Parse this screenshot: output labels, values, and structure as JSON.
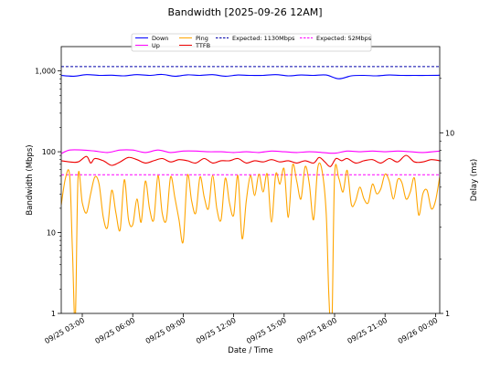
{
  "chart_data": {
    "type": "line",
    "title": "Bandwidth [2025-09-26 12AM]",
    "xlabel": "Date / Time",
    "ylabel_left": "Bandwidth (Mbps)",
    "ylabel_right": "Delay (ms)",
    "yscale_left": "log",
    "yscale_right": "log",
    "ylim_left": [
      1,
      2000
    ],
    "ylim_right": [
      1,
      30
    ],
    "y_ticks_left": [
      {
        "value": 1,
        "label": "1"
      },
      {
        "value": 10,
        "label": "10"
      },
      {
        "value": 100,
        "label": "100"
      },
      {
        "value": 1000,
        "label": "1,000"
      }
    ],
    "y_ticks_right": [
      {
        "value": 1,
        "label": "1"
      },
      {
        "value": 10,
        "label": "10"
      }
    ],
    "xlim": [
      "2025-09-25 01:45",
      "2025-09-26 00:15"
    ],
    "x_ticks": [
      {
        "t": "2025-09-25 03:00",
        "label": "09/25 03:00"
      },
      {
        "t": "2025-09-25 06:00",
        "label": "09/25 06:00"
      },
      {
        "t": "2025-09-25 09:00",
        "label": "09/25 09:00"
      },
      {
        "t": "2025-09-25 12:00",
        "label": "09/25 12:00"
      },
      {
        "t": "2025-09-25 15:00",
        "label": "09/25 15:00"
      },
      {
        "t": "2025-09-25 18:00",
        "label": "09/25 18:00"
      },
      {
        "t": "2025-09-25 21:00",
        "label": "09/25 21:00"
      },
      {
        "t": "2025-09-26 00:00",
        "label": "09/26 00:00"
      }
    ],
    "legend_position": "top-center",
    "grid": false,
    "series": [
      {
        "name": "Down",
        "axis": "left",
        "color": "#0000ff",
        "style": "solid",
        "values": [
          [
            "2025-09-25 01:45",
            880
          ],
          [
            "2025-09-25 02:30",
            860
          ],
          [
            "2025-09-25 03:15",
            900
          ],
          [
            "2025-09-25 04:00",
            880
          ],
          [
            "2025-09-25 04:45",
            885
          ],
          [
            "2025-09-25 05:30",
            870
          ],
          [
            "2025-09-25 06:15",
            900
          ],
          [
            "2025-09-25 07:00",
            880
          ],
          [
            "2025-09-25 07:45",
            905
          ],
          [
            "2025-09-25 08:30",
            860
          ],
          [
            "2025-09-25 09:15",
            895
          ],
          [
            "2025-09-25 10:00",
            880
          ],
          [
            "2025-09-25 10:45",
            900
          ],
          [
            "2025-09-25 11:30",
            860
          ],
          [
            "2025-09-25 12:15",
            890
          ],
          [
            "2025-09-25 13:00",
            880
          ],
          [
            "2025-09-25 13:45",
            880
          ],
          [
            "2025-09-25 14:30",
            900
          ],
          [
            "2025-09-25 15:15",
            870
          ],
          [
            "2025-09-25 16:00",
            890
          ],
          [
            "2025-09-25 16:45",
            880
          ],
          [
            "2025-09-25 17:30",
            890
          ],
          [
            "2025-09-25 18:15",
            800
          ],
          [
            "2025-09-25 19:00",
            870
          ],
          [
            "2025-09-25 19:45",
            880
          ],
          [
            "2025-09-25 20:30",
            870
          ],
          [
            "2025-09-25 21:15",
            890
          ],
          [
            "2025-09-25 22:00",
            880
          ],
          [
            "2025-09-25 22:45",
            880
          ],
          [
            "2025-09-25 23:30",
            880
          ],
          [
            "2025-09-26 00:15",
            885
          ]
        ]
      },
      {
        "name": "Up",
        "axis": "left",
        "color": "#ff00ff",
        "style": "solid",
        "values": [
          [
            "2025-09-25 01:45",
            95
          ],
          [
            "2025-09-25 02:15",
            105
          ],
          [
            "2025-09-25 03:00",
            105
          ],
          [
            "2025-09-25 03:45",
            102
          ],
          [
            "2025-09-25 04:30",
            98
          ],
          [
            "2025-09-25 05:15",
            105
          ],
          [
            "2025-09-25 06:00",
            105
          ],
          [
            "2025-09-25 06:45",
            98
          ],
          [
            "2025-09-25 07:30",
            105
          ],
          [
            "2025-09-25 08:15",
            98
          ],
          [
            "2025-09-25 09:00",
            102
          ],
          [
            "2025-09-25 09:45",
            102
          ],
          [
            "2025-09-25 10:30",
            100
          ],
          [
            "2025-09-25 11:15",
            100
          ],
          [
            "2025-09-25 12:00",
            98
          ],
          [
            "2025-09-25 12:45",
            100
          ],
          [
            "2025-09-25 13:30",
            98
          ],
          [
            "2025-09-25 14:15",
            102
          ],
          [
            "2025-09-25 15:00",
            100
          ],
          [
            "2025-09-25 15:45",
            98
          ],
          [
            "2025-09-25 16:30",
            100
          ],
          [
            "2025-09-25 17:15",
            98
          ],
          [
            "2025-09-25 18:00",
            96
          ],
          [
            "2025-09-25 18:45",
            102
          ],
          [
            "2025-09-25 19:30",
            100
          ],
          [
            "2025-09-25 20:15",
            102
          ],
          [
            "2025-09-25 21:00",
            100
          ],
          [
            "2025-09-25 21:45",
            102
          ],
          [
            "2025-09-25 22:30",
            100
          ],
          [
            "2025-09-25 23:15",
            98
          ],
          [
            "2025-09-26 00:15",
            102
          ]
        ]
      },
      {
        "name": "Ping",
        "axis": "right",
        "color": "#ffa500",
        "style": "solid",
        "values": [
          [
            "2025-09-25 01:45",
            4
          ],
          [
            "2025-09-25 02:00",
            5.6
          ],
          [
            "2025-09-25 02:15",
            5.8
          ],
          [
            "2025-09-25 02:25",
            2.2
          ],
          [
            "2025-09-25 02:35",
            0.9
          ],
          [
            "2025-09-25 02:45",
            5.7
          ],
          [
            "2025-09-25 03:00",
            4.1
          ],
          [
            "2025-09-25 03:15",
            3.6
          ],
          [
            "2025-09-25 03:30",
            4.6
          ],
          [
            "2025-09-25 03:45",
            5.7
          ],
          [
            "2025-09-25 04:00",
            5.2
          ],
          [
            "2025-09-25 04:15",
            3.4
          ],
          [
            "2025-09-25 04:30",
            3.0
          ],
          [
            "2025-09-25 04:45",
            4.8
          ],
          [
            "2025-09-25 05:00",
            3.6
          ],
          [
            "2025-09-25 05:15",
            2.9
          ],
          [
            "2025-09-25 05:30",
            5.5
          ],
          [
            "2025-09-25 05:45",
            3.3
          ],
          [
            "2025-09-25 06:00",
            3.1
          ],
          [
            "2025-09-25 06:15",
            4.3
          ],
          [
            "2025-09-25 06:30",
            3.2
          ],
          [
            "2025-09-25 06:45",
            5.4
          ],
          [
            "2025-09-25 07:00",
            3.8
          ],
          [
            "2025-09-25 07:15",
            3.3
          ],
          [
            "2025-09-25 07:30",
            5.8
          ],
          [
            "2025-09-25 07:45",
            3.6
          ],
          [
            "2025-09-25 08:00",
            3.3
          ],
          [
            "2025-09-25 08:15",
            5.7
          ],
          [
            "2025-09-25 08:30",
            4.4
          ],
          [
            "2025-09-25 08:45",
            3.3
          ],
          [
            "2025-09-25 09:00",
            2.5
          ],
          [
            "2025-09-25 09:15",
            5.8
          ],
          [
            "2025-09-25 09:30",
            4.2
          ],
          [
            "2025-09-25 09:45",
            3.6
          ],
          [
            "2025-09-25 10:00",
            5.7
          ],
          [
            "2025-09-25 10:15",
            4.4
          ],
          [
            "2025-09-25 10:30",
            3.8
          ],
          [
            "2025-09-25 10:45",
            5.8
          ],
          [
            "2025-09-25 11:00",
            3.8
          ],
          [
            "2025-09-25 11:15",
            3.3
          ],
          [
            "2025-09-25 11:30",
            5.6
          ],
          [
            "2025-09-25 11:45",
            4.1
          ],
          [
            "2025-09-25 12:00",
            3.5
          ],
          [
            "2025-09-25 12:15",
            5.8
          ],
          [
            "2025-09-25 12:30",
            2.6
          ],
          [
            "2025-09-25 12:45",
            4.2
          ],
          [
            "2025-09-25 13:00",
            5.8
          ],
          [
            "2025-09-25 13:15",
            4.5
          ],
          [
            "2025-09-25 13:30",
            5.9
          ],
          [
            "2025-09-25 13:45",
            4.7
          ],
          [
            "2025-09-25 14:00",
            5.9
          ],
          [
            "2025-09-25 14:15",
            3.2
          ],
          [
            "2025-09-25 14:30",
            5.9
          ],
          [
            "2025-09-25 14:45",
            5.2
          ],
          [
            "2025-09-25 15:00",
            6.3
          ],
          [
            "2025-09-25 15:15",
            3.4
          ],
          [
            "2025-09-25 15:30",
            6.6
          ],
          [
            "2025-09-25 15:45",
            5.4
          ],
          [
            "2025-09-25 16:00",
            4.3
          ],
          [
            "2025-09-25 16:15",
            6.5
          ],
          [
            "2025-09-25 16:30",
            5.2
          ],
          [
            "2025-09-25 16:45",
            3.3
          ],
          [
            "2025-09-25 17:00",
            6.4
          ],
          [
            "2025-09-25 17:15",
            6.2
          ],
          [
            "2025-09-25 17:30",
            3.6
          ],
          [
            "2025-09-25 17:40",
            1.2
          ],
          [
            "2025-09-25 17:50",
            0.8
          ],
          [
            "2025-09-25 18:00",
            5.8
          ],
          [
            "2025-09-25 18:15",
            5.6
          ],
          [
            "2025-09-25 18:30",
            4.7
          ],
          [
            "2025-09-25 18:45",
            6.2
          ],
          [
            "2025-09-25 19:00",
            4.0
          ],
          [
            "2025-09-25 19:15",
            4.2
          ],
          [
            "2025-09-25 19:30",
            5.0
          ],
          [
            "2025-09-25 19:45",
            4.3
          ],
          [
            "2025-09-25 20:00",
            4.1
          ],
          [
            "2025-09-25 20:15",
            5.2
          ],
          [
            "2025-09-25 20:30",
            4.6
          ],
          [
            "2025-09-25 20:45",
            4.9
          ],
          [
            "2025-09-25 21:00",
            5.9
          ],
          [
            "2025-09-25 21:15",
            5.4
          ],
          [
            "2025-09-25 21:30",
            4.3
          ],
          [
            "2025-09-25 21:45",
            5.5
          ],
          [
            "2025-09-25 22:00",
            5.3
          ],
          [
            "2025-09-25 22:15",
            4.3
          ],
          [
            "2025-09-25 22:30",
            4.7
          ],
          [
            "2025-09-25 22:45",
            5.6
          ],
          [
            "2025-09-25 23:00",
            3.5
          ],
          [
            "2025-09-25 23:15",
            4.6
          ],
          [
            "2025-09-25 23:30",
            4.8
          ],
          [
            "2025-09-25 23:45",
            3.8
          ],
          [
            "2025-09-26 00:00",
            4.2
          ],
          [
            "2025-09-26 00:15",
            5.7
          ]
        ]
      },
      {
        "name": "TTFB",
        "axis": "right",
        "color": "#ee0000",
        "style": "solid",
        "values": [
          [
            "2025-09-25 01:45",
            7.0
          ],
          [
            "2025-09-25 02:15",
            6.9
          ],
          [
            "2025-09-25 02:45",
            6.9
          ],
          [
            "2025-09-25 03:15",
            7.4
          ],
          [
            "2025-09-25 03:30",
            6.8
          ],
          [
            "2025-09-25 03:45",
            7.2
          ],
          [
            "2025-09-25 04:15",
            7.0
          ],
          [
            "2025-09-25 04:45",
            6.6
          ],
          [
            "2025-09-25 05:15",
            6.9
          ],
          [
            "2025-09-25 05:45",
            7.3
          ],
          [
            "2025-09-25 06:15",
            7.1
          ],
          [
            "2025-09-25 06:45",
            6.8
          ],
          [
            "2025-09-25 07:15",
            7.0
          ],
          [
            "2025-09-25 07:45",
            7.2
          ],
          [
            "2025-09-25 08:15",
            6.9
          ],
          [
            "2025-09-25 08:45",
            7.1
          ],
          [
            "2025-09-25 09:15",
            7.0
          ],
          [
            "2025-09-25 09:45",
            6.8
          ],
          [
            "2025-09-25 10:15",
            7.2
          ],
          [
            "2025-09-25 10:45",
            6.8
          ],
          [
            "2025-09-25 11:15",
            7.0
          ],
          [
            "2025-09-25 11:45",
            7.0
          ],
          [
            "2025-09-25 12:15",
            7.2
          ],
          [
            "2025-09-25 12:45",
            6.8
          ],
          [
            "2025-09-25 13:15",
            7.0
          ],
          [
            "2025-09-25 13:45",
            6.9
          ],
          [
            "2025-09-25 14:15",
            7.1
          ],
          [
            "2025-09-25 14:45",
            6.9
          ],
          [
            "2025-09-25 15:15",
            7.0
          ],
          [
            "2025-09-25 15:45",
            6.8
          ],
          [
            "2025-09-25 16:15",
            7.0
          ],
          [
            "2025-09-25 16:45",
            6.8
          ],
          [
            "2025-09-25 17:05",
            7.3
          ],
          [
            "2025-09-25 17:25",
            6.9
          ],
          [
            "2025-09-25 17:45",
            6.5
          ],
          [
            "2025-09-25 18:05",
            7.2
          ],
          [
            "2025-09-25 18:25",
            7.0
          ],
          [
            "2025-09-25 18:45",
            7.2
          ],
          [
            "2025-09-25 19:15",
            6.8
          ],
          [
            "2025-09-25 19:45",
            7.0
          ],
          [
            "2025-09-25 20:15",
            7.1
          ],
          [
            "2025-09-25 20:45",
            6.8
          ],
          [
            "2025-09-25 21:15",
            7.2
          ],
          [
            "2025-09-25 21:45",
            6.9
          ],
          [
            "2025-09-25 22:15",
            7.5
          ],
          [
            "2025-09-25 22:45",
            6.9
          ],
          [
            "2025-09-25 23:15",
            6.9
          ],
          [
            "2025-09-25 23:45",
            7.1
          ],
          [
            "2025-09-26 00:15",
            7.0
          ]
        ]
      }
    ],
    "reference_lines": [
      {
        "name": "Expected: 1130Mbps",
        "axis": "left",
        "value": 1130,
        "color": "#0000aa",
        "style": "dashed"
      },
      {
        "name": "Expected: 52Mbps",
        "axis": "left",
        "value": 52,
        "color": "#ff00ff",
        "style": "dashed"
      }
    ],
    "legend": [
      {
        "label": "Down",
        "color": "#0000ff",
        "style": "solid"
      },
      {
        "label": "Up",
        "color": "#ff00ff",
        "style": "solid"
      },
      {
        "label": "Ping",
        "color": "#ffa500",
        "style": "solid"
      },
      {
        "label": "TTFB",
        "color": "#ee0000",
        "style": "solid"
      },
      {
        "label": "Expected: 1130Mbps",
        "color": "#0000aa",
        "style": "dashed"
      },
      {
        "label": "Expected: 52Mbps",
        "color": "#ff00ff",
        "style": "dashed"
      }
    ]
  }
}
